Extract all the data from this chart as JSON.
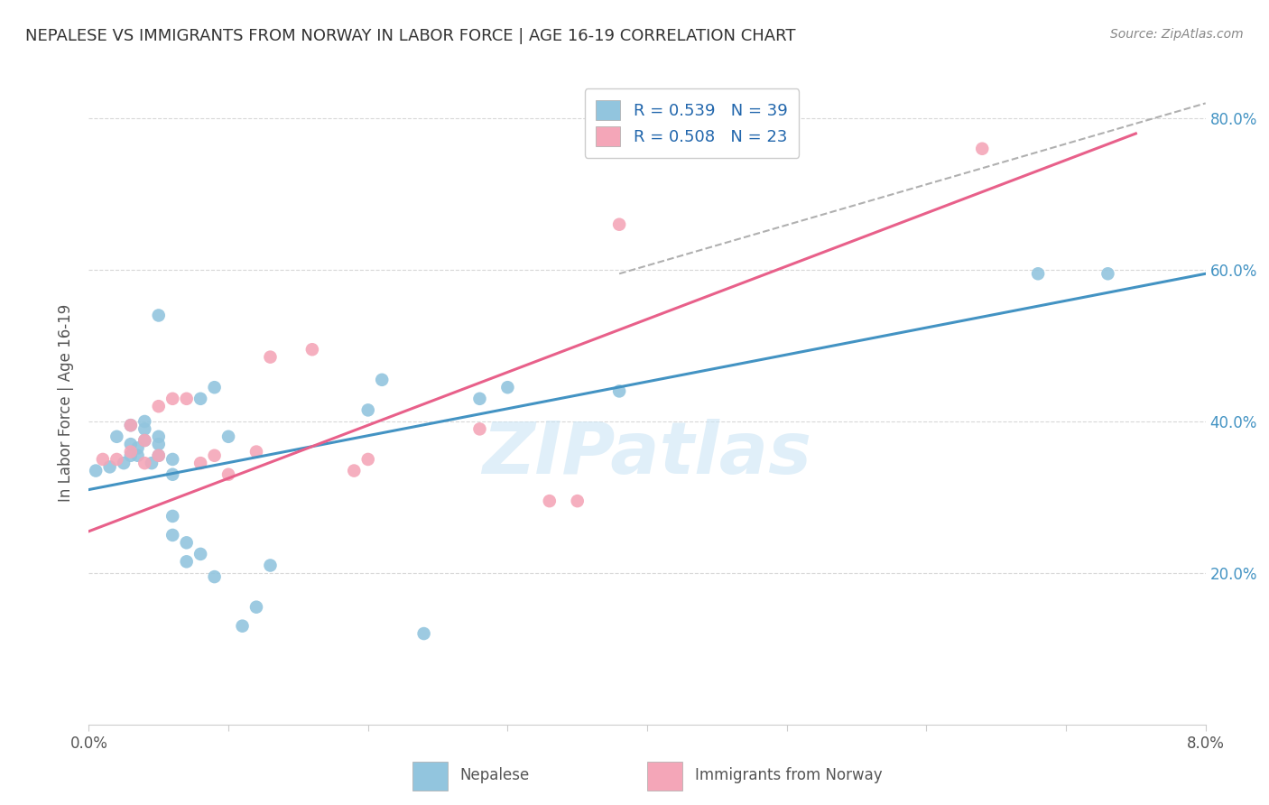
{
  "title": "NEPALESE VS IMMIGRANTS FROM NORWAY IN LABOR FORCE | AGE 16-19 CORRELATION CHART",
  "source": "Source: ZipAtlas.com",
  "ylabel": "In Labor Force | Age 16-19",
  "x_min": 0.0,
  "x_max": 0.08,
  "y_min": 0.0,
  "y_max": 0.85,
  "x_ticks": [
    0.0,
    0.01,
    0.02,
    0.03,
    0.04,
    0.05,
    0.06,
    0.07,
    0.08
  ],
  "y_ticks": [
    0.0,
    0.2,
    0.4,
    0.6,
    0.8
  ],
  "blue_color": "#92c5de",
  "pink_color": "#f4a6b8",
  "blue_line_color": "#4393c3",
  "pink_line_color": "#e8608a",
  "dashed_line_color": "#b0b0b0",
  "legend_text_color": "#2166ac",
  "legend_n_color": "#333333",
  "watermark_color": "#cce5f5",
  "legend_r_blue": "0.539",
  "legend_n_blue": "39",
  "legend_r_pink": "0.508",
  "legend_n_pink": "23",
  "watermark": "ZIPatlas",
  "nepalese_x": [
    0.0005,
    0.0015,
    0.002,
    0.0025,
    0.003,
    0.003,
    0.003,
    0.0035,
    0.0035,
    0.004,
    0.004,
    0.004,
    0.0045,
    0.005,
    0.005,
    0.005,
    0.005,
    0.006,
    0.006,
    0.006,
    0.006,
    0.007,
    0.007,
    0.008,
    0.008,
    0.009,
    0.009,
    0.01,
    0.011,
    0.012,
    0.013,
    0.02,
    0.021,
    0.024,
    0.028,
    0.03,
    0.038,
    0.068,
    0.073
  ],
  "nepalese_y": [
    0.335,
    0.34,
    0.38,
    0.345,
    0.355,
    0.37,
    0.395,
    0.355,
    0.365,
    0.375,
    0.39,
    0.4,
    0.345,
    0.355,
    0.37,
    0.38,
    0.54,
    0.25,
    0.275,
    0.33,
    0.35,
    0.215,
    0.24,
    0.225,
    0.43,
    0.195,
    0.445,
    0.38,
    0.13,
    0.155,
    0.21,
    0.415,
    0.455,
    0.12,
    0.43,
    0.445,
    0.44,
    0.595,
    0.595
  ],
  "norway_x": [
    0.001,
    0.002,
    0.003,
    0.003,
    0.004,
    0.004,
    0.005,
    0.005,
    0.006,
    0.007,
    0.008,
    0.009,
    0.01,
    0.012,
    0.013,
    0.016,
    0.019,
    0.02,
    0.028,
    0.033,
    0.035,
    0.038,
    0.064
  ],
  "norway_y": [
    0.35,
    0.35,
    0.36,
    0.395,
    0.345,
    0.375,
    0.355,
    0.42,
    0.43,
    0.43,
    0.345,
    0.355,
    0.33,
    0.36,
    0.485,
    0.495,
    0.335,
    0.35,
    0.39,
    0.295,
    0.295,
    0.66,
    0.76
  ],
  "blue_trend_x": [
    0.0,
    0.08
  ],
  "blue_trend_y": [
    0.31,
    0.595
  ],
  "pink_trend_x": [
    0.0,
    0.075
  ],
  "pink_trend_y": [
    0.255,
    0.78
  ],
  "dashed_trend_x": [
    0.038,
    0.08
  ],
  "dashed_trend_y": [
    0.595,
    0.82
  ],
  "grid_color": "#d8d8d8",
  "spine_color": "#cccccc",
  "tick_label_color": "#555555",
  "right_tick_color": "#4393c3",
  "ylabel_color": "#555555",
  "title_color": "#333333",
  "source_color": "#888888"
}
